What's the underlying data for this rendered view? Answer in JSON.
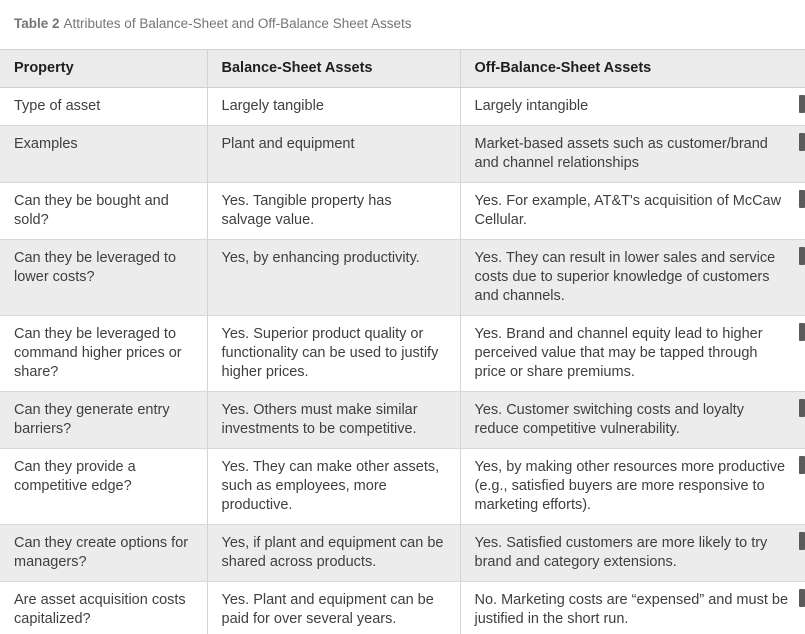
{
  "table": {
    "caption_label": "Table 2",
    "caption_text": "Attributes of Balance-Sheet and Off-Balance Sheet Assets",
    "columns": [
      "Property",
      "Balance-Sheet Assets",
      "Off-Balance-Sheet Assets"
    ],
    "rows": [
      {
        "property": "Type of asset",
        "balance": "Largely tangible",
        "off_balance": "Largely intangible"
      },
      {
        "property": "Examples",
        "balance": "Plant and equipment",
        "off_balance": "Market-based assets such as customer/brand and channel relationships"
      },
      {
        "property": "Can they be bought and sold?",
        "balance": "Yes. Tangible property has salvage value.",
        "off_balance": "Yes. For example, AT&T's acquisition of McCaw Cellular."
      },
      {
        "property": "Can they be leveraged to lower costs?",
        "balance": "Yes, by enhancing productivity.",
        "off_balance": "Yes. They can result in lower sales and service costs due to superior knowledge of customers and channels."
      },
      {
        "property": "Can they be leveraged to command higher prices or share?",
        "balance": "Yes. Superior product quality or functionality can be used to justify higher prices.",
        "off_balance": "Yes. Brand and channel equity lead to higher perceived value that may be tapped through price or share premiums."
      },
      {
        "property": "Can they generate entry barriers?",
        "balance": "Yes. Others must make similar investments to be competitive.",
        "off_balance": "Yes. Customer switching costs and loyalty reduce competitive vulnerability."
      },
      {
        "property": "Can they provide a competitive edge?",
        "balance": "Yes. They can make other assets, such as employees, more productive.",
        "off_balance": "Yes, by making other resources more productive (e.g., satisfied buyers are more responsive to marketing efforts)."
      },
      {
        "property": "Can they create options for managers?",
        "balance": "Yes, if plant and equipment can be shared across products.",
        "off_balance": "Yes. Satisfied customers are more likely to try brand and category extensions."
      },
      {
        "property": "Are asset acquisition costs capitalized?",
        "balance": "Yes. Plant and equipment can be paid for over several years.",
        "off_balance": "No. Marketing costs are “expensed” and must be justified in the short run."
      }
    ],
    "colors": {
      "header_bg": "#ebebeb",
      "alt_row_bg": "#ececec",
      "border": "#d4d4d4",
      "text": "#3f3f3f",
      "caption": "#757575"
    }
  }
}
